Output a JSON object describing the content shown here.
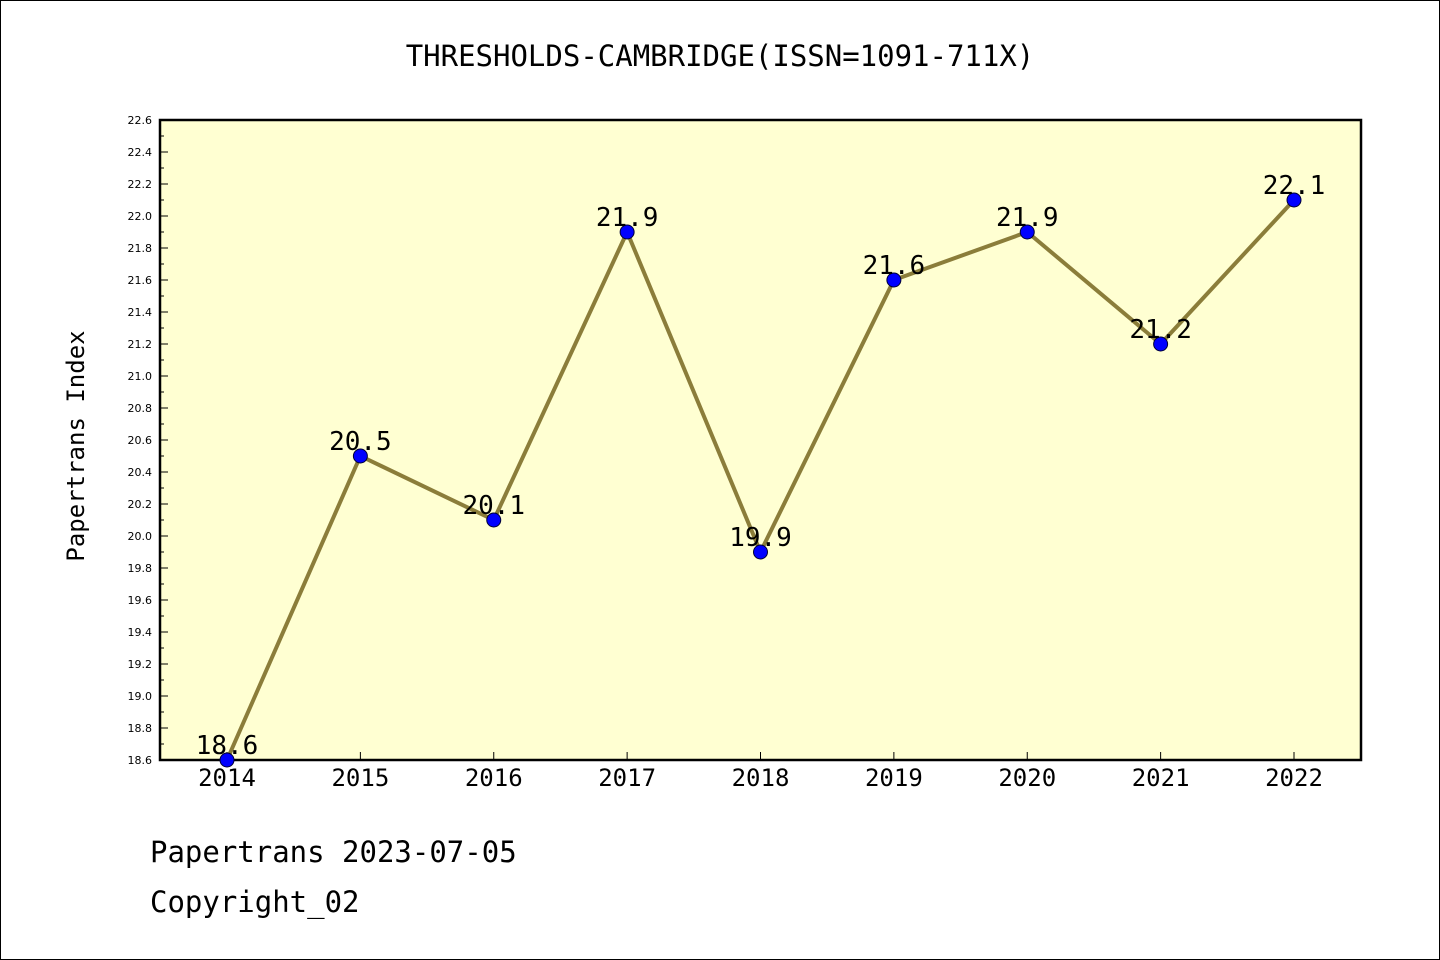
{
  "chart_data": {
    "type": "line",
    "title": "THRESHOLDS-CAMBRIDGE(ISSN=1091-711X)",
    "xlabel": "",
    "ylabel": "Papertrans Index",
    "categories": [
      "2014",
      "2015",
      "2016",
      "2017",
      "2018",
      "2019",
      "2020",
      "2021",
      "2022"
    ],
    "series": [
      {
        "values": [
          18.6,
          20.5,
          20.1,
          21.9,
          19.9,
          21.6,
          21.9,
          21.2,
          22.1
        ],
        "data_labels": [
          "18.6",
          "20.5",
          "20.1",
          "21.9",
          "19.9",
          "21.6",
          "21.9",
          "21.2",
          "22.1"
        ]
      }
    ],
    "ylim": [
      18.6,
      22.6
    ],
    "yticks": [
      "18.6",
      "18.8",
      "19.0",
      "19.2",
      "19.4",
      "19.6",
      "19.8",
      "20.0",
      "20.2",
      "20.4",
      "20.6",
      "20.8",
      "21.0",
      "21.2",
      "21.4",
      "21.6",
      "21.8",
      "22.0",
      "22.2",
      "22.4",
      "22.6"
    ],
    "grid": false,
    "legend": "none",
    "colors": {
      "plot_background": "#ffffd2",
      "line": "#8b7d3a",
      "marker": "#0000ff"
    }
  },
  "footer": {
    "line1": "Papertrans 2023-07-05",
    "line2": "Copyright_02"
  }
}
